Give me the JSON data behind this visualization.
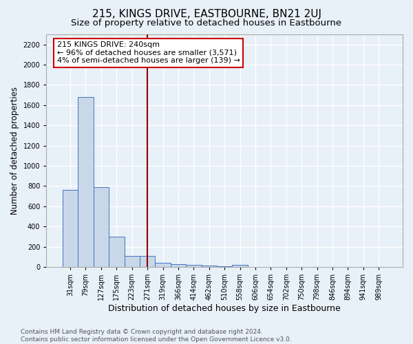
{
  "title": "215, KINGS DRIVE, EASTBOURNE, BN21 2UJ",
  "subtitle": "Size of property relative to detached houses in Eastbourne",
  "xlabel": "Distribution of detached houses by size in Eastbourne",
  "ylabel": "Number of detached properties",
  "footnote1": "Contains HM Land Registry data © Crown copyright and database right 2024.",
  "footnote2": "Contains public sector information licensed under the Open Government Licence v3.0.",
  "annotation_line1": "215 KINGS DRIVE: 240sqm",
  "annotation_line2": "← 96% of detached houses are smaller (3,571)",
  "annotation_line3": "4% of semi-detached houses are larger (139) →",
  "bar_color": "#c8d8e8",
  "bar_edge_color": "#4472c4",
  "vline_color": "#8b0000",
  "vline_x": 5.0,
  "categories": [
    "31sqm",
    "79sqm",
    "127sqm",
    "175sqm",
    "223sqm",
    "271sqm",
    "319sqm",
    "366sqm",
    "414sqm",
    "462sqm",
    "510sqm",
    "558sqm",
    "606sqm",
    "654sqm",
    "702sqm",
    "750sqm",
    "798sqm",
    "846sqm",
    "894sqm",
    "941sqm",
    "989sqm"
  ],
  "values": [
    760,
    1680,
    790,
    300,
    110,
    110,
    40,
    30,
    20,
    15,
    10,
    20,
    0,
    0,
    0,
    0,
    0,
    0,
    0,
    0,
    0
  ],
  "ylim": [
    0,
    2300
  ],
  "yticks": [
    0,
    200,
    400,
    600,
    800,
    1000,
    1200,
    1400,
    1600,
    1800,
    2000,
    2200
  ],
  "background_color": "#e8f0f8",
  "grid_color": "#ffffff",
  "title_fontsize": 11,
  "subtitle_fontsize": 9.5,
  "xlabel_fontsize": 9,
  "ylabel_fontsize": 8.5,
  "tick_fontsize": 7,
  "annotation_fontsize": 8,
  "footnote_fontsize": 6.5
}
